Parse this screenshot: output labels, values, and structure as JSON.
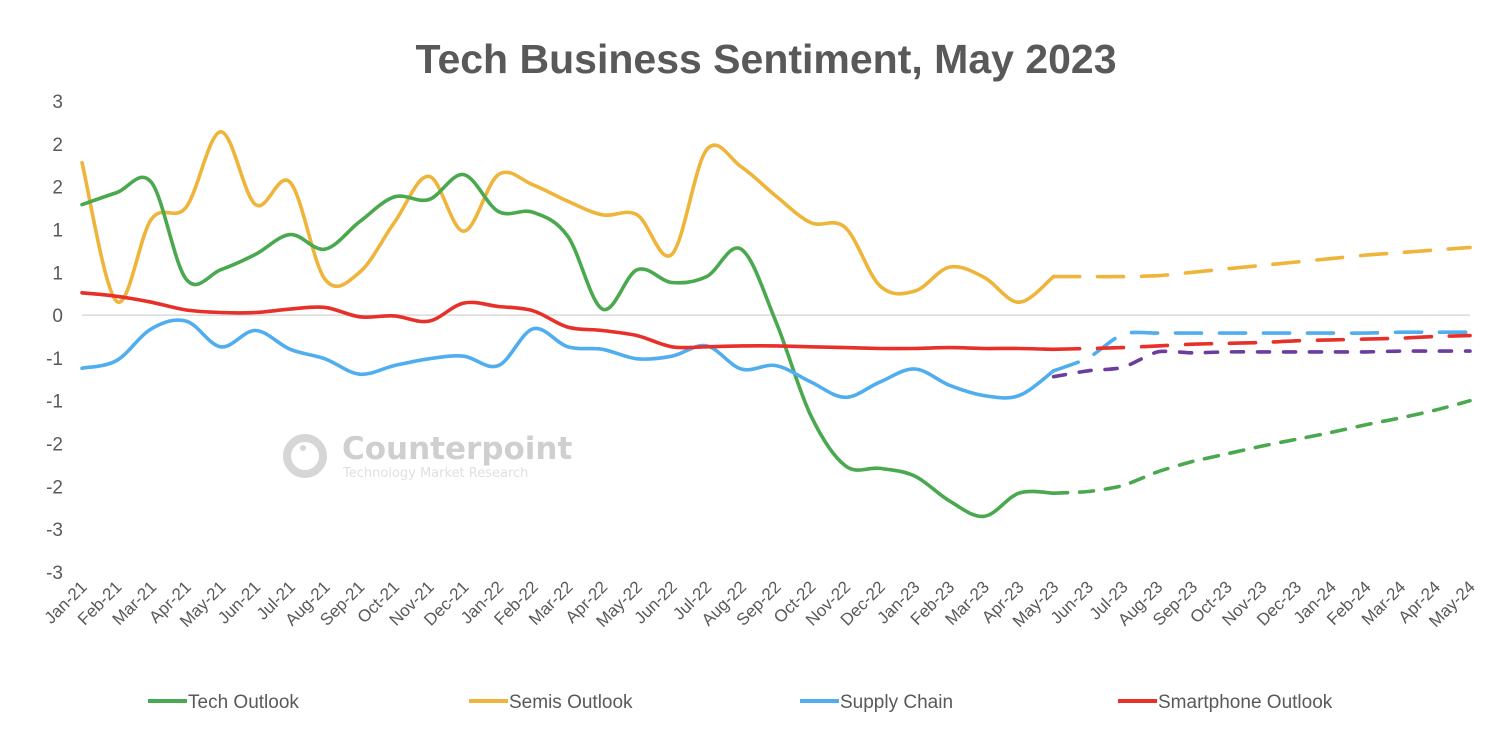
{
  "chart_data": {
    "type": "line",
    "title": "Tech Business Sentiment, May 2023",
    "xlabel": "",
    "ylabel": "",
    "ylim": [
      -3,
      2.5
    ],
    "ytick_values": [
      2.5,
      2,
      1.5,
      1,
      0.5,
      0,
      -0.5,
      -1,
      -1.5,
      -2,
      -2.5,
      -3
    ],
    "ytick_labels": [
      "3",
      "2",
      "2",
      "1",
      "1",
      "0",
      "-1",
      "-1",
      "-2",
      "-2",
      "-3",
      "-3"
    ],
    "grid": false,
    "zero_line": true,
    "legend_position": "bottom",
    "categories": [
      "Jan-21",
      "Feb-21",
      "Mar-21",
      "Apr-21",
      "May-21",
      "Jun-21",
      "Jul-21",
      "Aug-21",
      "Sep-21",
      "Oct-21",
      "Nov-21",
      "Dec-21",
      "Jan-22",
      "Feb-22",
      "Mar-22",
      "Apr-22",
      "May-22",
      "Jun-22",
      "Jul-22",
      "Aug-22",
      "Sep-22",
      "Oct-22",
      "Nov-22",
      "Dec-22",
      "Jan-23",
      "Feb-23",
      "Mar-23",
      "Apr-23",
      "May-23",
      "Jun-23",
      "Jul-23",
      "Aug-23",
      "Sep-23",
      "Oct-23",
      "Nov-23",
      "Dec-23",
      "Jan-24",
      "Feb-24",
      "Mar-24",
      "Apr-24",
      "May-24"
    ],
    "series": [
      {
        "name": "Tech Outlook",
        "color": "#4aa84e",
        "actual": [
          1.29,
          1.43,
          1.55,
          0.42,
          0.53,
          0.71,
          0.94,
          0.77,
          1.09,
          1.38,
          1.35,
          1.64,
          1.21,
          1.2,
          0.92,
          0.07,
          0.53,
          0.38,
          0.45,
          0.77,
          -0.08,
          -1.17,
          -1.76,
          -1.79,
          -1.88,
          -2.17,
          -2.35,
          -2.08,
          -2.08
        ],
        "forecast": [
          -2.08,
          -2.06,
          -1.99,
          -1.83,
          -1.71,
          -1.62,
          -1.53,
          -1.45,
          -1.37,
          -1.28,
          -1.2,
          -1.11,
          -1.0
        ]
      },
      {
        "name": "Semis Outlook",
        "color": "#efb43a",
        "actual": [
          1.78,
          0.16,
          1.12,
          1.26,
          2.14,
          1.29,
          1.55,
          0.42,
          0.5,
          1.08,
          1.62,
          0.98,
          1.64,
          1.52,
          1.33,
          1.17,
          1.17,
          0.71,
          1.93,
          1.73,
          1.39,
          1.08,
          1.02,
          0.34,
          0.28,
          0.56,
          0.44,
          0.15,
          0.45
        ],
        "forecast": [
          0.45,
          0.45,
          0.45,
          0.46,
          0.5,
          0.54,
          0.58,
          0.62,
          0.66,
          0.7,
          0.73,
          0.76,
          0.79
        ]
      },
      {
        "name": "Supply Chain",
        "color": "#51aeee",
        "actual": [
          -0.62,
          -0.53,
          -0.16,
          -0.07,
          -0.37,
          -0.18,
          -0.4,
          -0.51,
          -0.69,
          -0.59,
          -0.51,
          -0.48,
          -0.59,
          -0.16,
          -0.37,
          -0.4,
          -0.51,
          -0.48,
          -0.36,
          -0.63,
          -0.59,
          -0.78,
          -0.96,
          -0.78,
          -0.63,
          -0.82,
          -0.94,
          -0.94,
          -0.65
        ],
        "forecast": [
          -0.65,
          -0.5,
          -0.22,
          -0.21,
          -0.21,
          -0.21,
          -0.21,
          -0.21,
          -0.21,
          -0.21,
          -0.2,
          -0.2,
          -0.2
        ]
      },
      {
        "name": "Smartphone Outlook",
        "color": "#e8302a",
        "actual": [
          0.26,
          0.22,
          0.15,
          0.06,
          0.03,
          0.03,
          0.07,
          0.09,
          -0.02,
          -0.01,
          -0.07,
          0.14,
          0.1,
          0.05,
          -0.14,
          -0.18,
          -0.24,
          -0.37,
          -0.37,
          -0.36,
          -0.36,
          -0.37,
          -0.38,
          -0.39,
          -0.39,
          -0.38,
          -0.39,
          -0.39,
          -0.4
        ],
        "forecast": [
          -0.4,
          -0.39,
          -0.38,
          -0.36,
          -0.34,
          -0.33,
          -0.32,
          -0.3,
          -0.29,
          -0.28,
          -0.27,
          -0.25,
          -0.24
        ]
      },
      {
        "name": "",
        "color": "#6a3d9e",
        "actual": [],
        "forecast": [
          -0.72,
          -0.65,
          -0.61,
          -0.43,
          -0.44,
          -0.43,
          -0.43,
          -0.43,
          -0.43,
          -0.43,
          -0.42,
          -0.42,
          -0.42
        ]
      }
    ],
    "forecast_start_index": 28
  },
  "legend": [
    {
      "label": "Tech Outlook",
      "color": "#4aa84e"
    },
    {
      "label": "Semis Outlook",
      "color": "#efb43a"
    },
    {
      "label": "Supply Chain",
      "color": "#51aeee"
    },
    {
      "label": "Smartphone Outlook",
      "color": "#e8302a"
    }
  ],
  "watermark": {
    "name": "Counterpoint",
    "tagline": "Technology Market Research"
  }
}
